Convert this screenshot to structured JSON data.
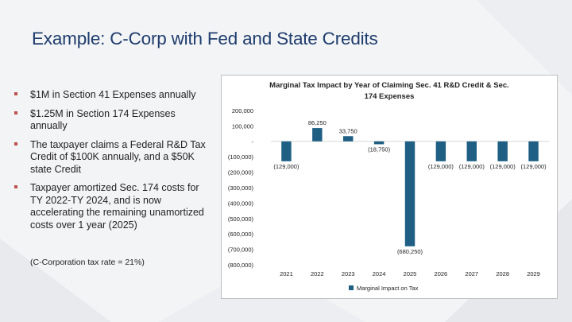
{
  "slide": {
    "title": "Example: C-Corp with Fed and State Credits",
    "bullets": [
      "$1M in Section 41 Expenses annually",
      "$1.25M in Section 174 Expenses annually",
      "The taxpayer claims a Federal R&D Tax Credit of $100K annually, and a $50K state Credit",
      "Taxpayer amortized Sec. 174 costs for TY 2022-TY 2024, and is now accelerating the remaining unamortized costs over 1 year (2025)"
    ],
    "note": "(C-Corporation tax rate = 21%)"
  },
  "colors": {
    "title": "#1f3d6d",
    "bullet": "#c0504d",
    "bar": "#1f5f84"
  },
  "chart_data": {
    "type": "bar",
    "title_line1": "Marginal Tax Impact by Year of Claiming Sec. 41 R&D Credit & Sec.",
    "title_line2": "174 Expenses",
    "categories": [
      "2021",
      "2022",
      "2023",
      "2024",
      "2025",
      "2026",
      "2027",
      "2028",
      "2029"
    ],
    "series": [
      {
        "name": "Marginal Impact on Tax",
        "values": [
          -129000,
          86250,
          33750,
          -18750,
          -680250,
          -129000,
          -129000,
          -129000,
          -129000
        ],
        "labels": [
          "(129,000)",
          "86,250",
          "33,750",
          "(18,750)",
          "(680,250)",
          "(129,000)",
          "(129,000)",
          "(129,000)",
          "(129,000)"
        ]
      }
    ],
    "ylim": [
      -800000,
      200000
    ],
    "yticks": [
      200000,
      100000,
      0,
      -100000,
      -200000,
      -300000,
      -400000,
      -500000,
      -600000,
      -700000,
      -800000
    ],
    "ytick_labels": [
      "200,000",
      "100,000",
      "-",
      "(100,000)",
      "(200,000)",
      "(300,000)",
      "(400,000)",
      "(500,000)",
      "(600,000)",
      "(700,000)",
      "(800,000)"
    ],
    "legend": "Marginal Impact on Tax",
    "legend_position": "bottom"
  }
}
